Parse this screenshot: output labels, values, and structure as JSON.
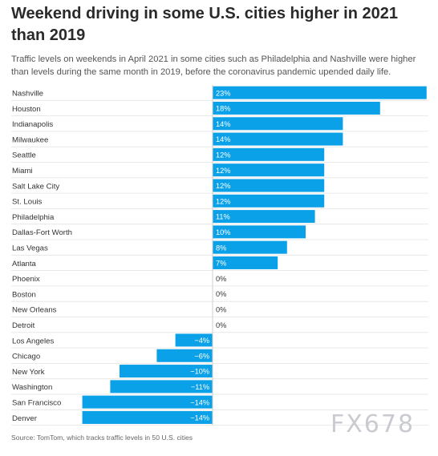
{
  "title": "Weekend driving in some U.S. cities higher in 2021 than 2019",
  "subtitle": "Traffic levels on weekends in April 2021 in some cities such as Philadelphia and Nashville were higher than levels during the same month in 2019, before the coronavirus pandemic upended daily life.",
  "source": "Source: TomTom, which tracks traffic levels in 50 U.S. cities",
  "watermark": "FX678",
  "colors": {
    "bar": "#0aa1e8",
    "row_divider": "#e3e3e3",
    "axis": "#cfcfcf"
  },
  "chart_data": {
    "type": "bar",
    "orientation": "horizontal",
    "categories": [
      "Nashville",
      "Houston",
      "Indianapolis",
      "Milwaukee",
      "Seattle",
      "Miami",
      "Salt Lake City",
      "St. Louis",
      "Philadelphia",
      "Dallas-Fort Worth",
      "Las Vegas",
      "Atlanta",
      "Phoenix",
      "Boston",
      "New Orleans",
      "Detroit",
      "Los Angeles",
      "Chicago",
      "New York",
      "Washington",
      "San Francisco",
      "Denver"
    ],
    "values": [
      23,
      18,
      14,
      14,
      12,
      12,
      12,
      12,
      11,
      10,
      8,
      7,
      0,
      0,
      0,
      0,
      -4,
      -6,
      -10,
      -11,
      -14,
      -14
    ],
    "labels": [
      "23%",
      "18%",
      "14%",
      "14%",
      "12%",
      "12%",
      "12%",
      "12%",
      "11%",
      "10%",
      "8%",
      "7%",
      "0%",
      "0%",
      "0%",
      "0%",
      "−4%",
      "−6%",
      "−10%",
      "−11%",
      "−14%",
      "−14%"
    ],
    "xlim": [
      -14,
      23
    ]
  }
}
